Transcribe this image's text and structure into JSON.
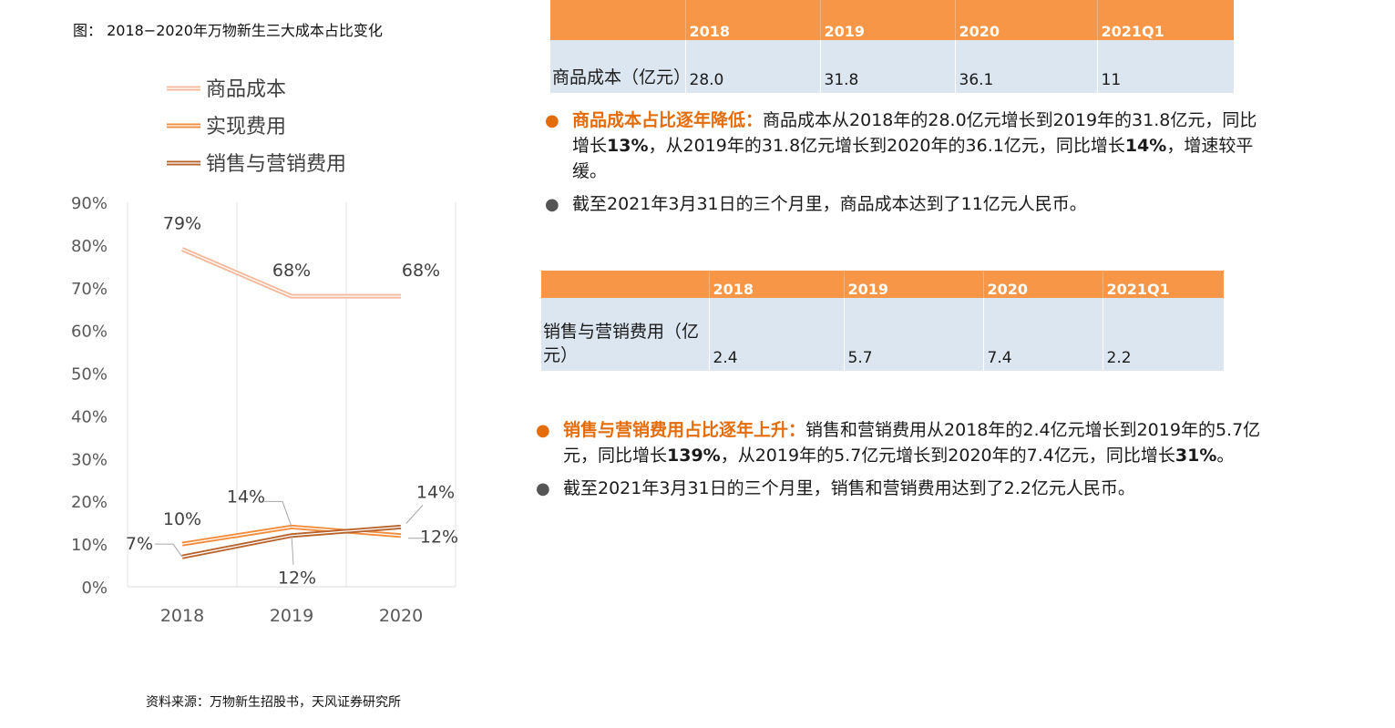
{
  "figure_title": "图： 2018−2020年万物新生三大成本占比变化",
  "source": "资料来源：万物新生招股书，天风证券研究所",
  "chart_data": {
    "type": "line",
    "categories": [
      "2018",
      "2019",
      "2020"
    ],
    "yticks": [
      "0%",
      "10%",
      "20%",
      "30%",
      "40%",
      "50%",
      "60%",
      "70%",
      "80%",
      "90%"
    ],
    "ylim": [
      0,
      90
    ],
    "grid": "vertical",
    "legend_position": "top-left",
    "series": [
      {
        "name": "商品成本",
        "values": [
          79,
          68,
          68
        ],
        "labels": [
          "79%",
          "68%",
          "68%"
        ],
        "color": "#F4B89A"
      },
      {
        "name": "实现费用",
        "values": [
          10,
          14,
          12
        ],
        "labels": [
          "10%",
          "14%",
          "12%"
        ],
        "color": "#F28C3C"
      },
      {
        "name": "销售与营销费用",
        "values": [
          7,
          12,
          14
        ],
        "labels": [
          "7%",
          "12%",
          "14%"
        ],
        "color": "#B8632C"
      }
    ]
  },
  "table1": {
    "headers": [
      "",
      "2018",
      "2019",
      "2020",
      "2021Q1"
    ],
    "rows": [
      {
        "label": "商品成本（亿元）",
        "values": [
          "28.0",
          "31.8",
          "36.1",
          "11"
        ]
      }
    ]
  },
  "bullets1": [
    {
      "title": "商品成本占比逐年降低：",
      "text": "商品成本从2018年的28.0亿元增长到2019年的31.8亿元，同比增长",
      "b1": "13%",
      "text2": "，从2019年的31.8亿元增长到2020年的36.1亿元，同比增长",
      "b2": "14%",
      "text3": "，增速较平缓。"
    },
    {
      "text": "截至2021年3月31日的三个月里，商品成本达到了11亿元人民币。"
    }
  ],
  "table2": {
    "headers": [
      "",
      "2018",
      "2019",
      "2020",
      "2021Q1"
    ],
    "rows": [
      {
        "label": "销售与营销费用（亿元）",
        "values": [
          "2.4",
          "5.7",
          "7.4",
          "2.2"
        ]
      }
    ]
  },
  "bullets2": [
    {
      "title": "销售与营销费用占比逐年上升：",
      "text": "销售和营销费用从2018年的2.4亿元增长到2019年的5.7亿元，同比增长",
      "b1": "139%",
      "text2": "，从2019年的5.7亿元增长到2020年的7.4亿元，同比增长",
      "b2": "31%",
      "text3": "。"
    },
    {
      "text": "截至2021年3月31日的三个月里，销售和营销费用达到了2.2亿元人民币。"
    }
  ]
}
